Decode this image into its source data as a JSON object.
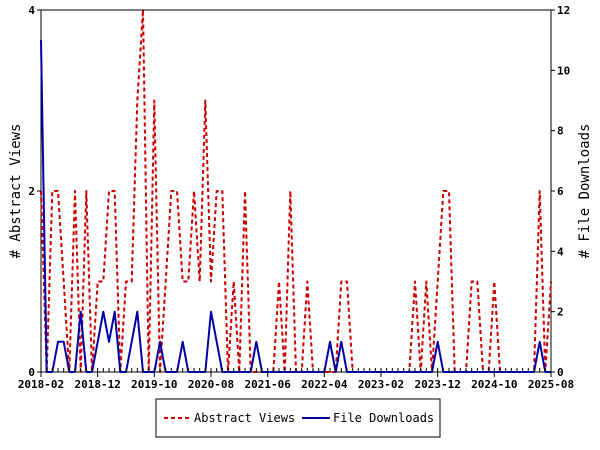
{
  "chart_data": {
    "type": "line",
    "x_tick_labels": [
      "2018-02",
      "2018-12",
      "2019-10",
      "2020-08",
      "2021-06",
      "2022-04",
      "2023-02",
      "2023-12",
      "2024-10",
      "2025-08"
    ],
    "xlim": [
      "2018-02",
      "2025-08"
    ],
    "y_left": {
      "label": "# Abstract Views",
      "ylim": [
        0,
        4
      ],
      "ticks": [
        0,
        2,
        4
      ]
    },
    "y_right": {
      "label": "# File Downloads",
      "ylim": [
        0,
        12
      ],
      "ticks": [
        0,
        2,
        4,
        6,
        8,
        10,
        12
      ]
    },
    "grid": false,
    "legend_position": "bottom",
    "series": [
      {
        "name": "Abstract Views",
        "axis": "left",
        "color": "#cc0000",
        "style": "dashed",
        "x": [
          "2018-02",
          "2018-03",
          "2018-04",
          "2018-05",
          "2018-06",
          "2018-07",
          "2018-08",
          "2018-09",
          "2018-10",
          "2018-11",
          "2018-12",
          "2019-01",
          "2019-02",
          "2019-03",
          "2019-04",
          "2019-05",
          "2019-06",
          "2019-07",
          "2019-08",
          "2019-09",
          "2019-10",
          "2019-11",
          "2019-12",
          "2020-01",
          "2020-02",
          "2020-03",
          "2020-04",
          "2020-05",
          "2020-06",
          "2020-07",
          "2020-08",
          "2020-09",
          "2020-10",
          "2020-11",
          "2020-12",
          "2021-01",
          "2021-02",
          "2021-03",
          "2021-04",
          "2021-05",
          "2021-06",
          "2021-07",
          "2021-08",
          "2021-09",
          "2021-10",
          "2021-11",
          "2021-12",
          "2022-01",
          "2022-02",
          "2022-03",
          "2022-04",
          "2022-05",
          "2022-06",
          "2022-07",
          "2022-08",
          "2022-09",
          "2022-10",
          "2022-11",
          "2022-12",
          "2023-01",
          "2023-02",
          "2023-03",
          "2023-04",
          "2023-05",
          "2023-06",
          "2023-07",
          "2023-08",
          "2023-09",
          "2023-10",
          "2023-11",
          "2023-12",
          "2024-01",
          "2024-02",
          "2024-03",
          "2024-04",
          "2024-05",
          "2024-06",
          "2024-07",
          "2024-08",
          "2024-09",
          "2024-10",
          "2024-11",
          "2024-12",
          "2025-01",
          "2025-02",
          "2025-03",
          "2025-04",
          "2025-05",
          "2025-06",
          "2025-07",
          "2025-08"
        ],
        "values": [
          2,
          0,
          2,
          2,
          1,
          0,
          2,
          0,
          2,
          0,
          1,
          1,
          2,
          2,
          0,
          1,
          1,
          3,
          4,
          0,
          3,
          0,
          1,
          2,
          2,
          1,
          1,
          2,
          1,
          3,
          1,
          2,
          2,
          0,
          1,
          0,
          2,
          0,
          0,
          0,
          0,
          0,
          1,
          0,
          2,
          0,
          0,
          1,
          0,
          0,
          0,
          0,
          0,
          1,
          1,
          0,
          0,
          0,
          0,
          0,
          0,
          0,
          0,
          0,
          0,
          0,
          1,
          0,
          1,
          0,
          1,
          2,
          2,
          0,
          0,
          0,
          1,
          1,
          0,
          0,
          1,
          0,
          0,
          0,
          0,
          0,
          0,
          0,
          2,
          0,
          1
        ]
      },
      {
        "name": "File Downloads",
        "axis": "right",
        "color": "#0000aa",
        "style": "solid",
        "x": [
          "2018-02",
          "2018-03",
          "2018-04",
          "2018-05",
          "2018-06",
          "2018-07",
          "2018-08",
          "2018-09",
          "2018-10",
          "2018-11",
          "2018-12",
          "2019-01",
          "2019-02",
          "2019-03",
          "2019-04",
          "2019-05",
          "2019-06",
          "2019-07",
          "2019-08",
          "2019-09",
          "2019-10",
          "2019-11",
          "2019-12",
          "2020-01",
          "2020-02",
          "2020-03",
          "2020-04",
          "2020-05",
          "2020-06",
          "2020-07",
          "2020-08",
          "2020-09",
          "2020-10",
          "2020-11",
          "2020-12",
          "2021-01",
          "2021-02",
          "2021-03",
          "2021-04",
          "2021-05",
          "2021-06",
          "2021-07",
          "2021-08",
          "2021-09",
          "2021-10",
          "2021-11",
          "2021-12",
          "2022-01",
          "2022-02",
          "2022-03",
          "2022-04",
          "2022-05",
          "2022-06",
          "2022-07",
          "2022-08",
          "2022-09",
          "2022-10",
          "2022-11",
          "2022-12",
          "2023-01",
          "2023-02",
          "2023-03",
          "2023-04",
          "2023-05",
          "2023-06",
          "2023-07",
          "2023-08",
          "2023-09",
          "2023-10",
          "2023-11",
          "2023-12",
          "2024-01",
          "2024-02",
          "2024-03",
          "2024-04",
          "2024-05",
          "2024-06",
          "2024-07",
          "2024-08",
          "2024-09",
          "2024-10",
          "2024-11",
          "2024-12",
          "2025-01",
          "2025-02",
          "2025-03",
          "2025-04",
          "2025-05",
          "2025-06",
          "2025-07",
          "2025-08"
        ],
        "values": [
          11,
          0,
          0,
          1,
          1,
          0,
          0,
          2,
          0,
          0,
          1,
          2,
          1,
          2,
          0,
          0,
          1,
          2,
          0,
          0,
          0,
          1,
          0,
          0,
          0,
          1,
          0,
          0,
          0,
          0,
          2,
          1,
          0,
          0,
          0,
          0,
          0,
          0,
          1,
          0,
          0,
          0,
          0,
          0,
          0,
          0,
          0,
          0,
          0,
          0,
          0,
          1,
          0,
          1,
          0,
          0,
          0,
          0,
          0,
          0,
          0,
          0,
          0,
          0,
          0,
          0,
          0,
          0,
          0,
          0,
          1,
          0,
          0,
          0,
          0,
          0,
          0,
          0,
          0,
          0,
          0,
          0,
          0,
          0,
          0,
          0,
          0,
          0,
          1,
          0,
          0
        ]
      }
    ]
  }
}
